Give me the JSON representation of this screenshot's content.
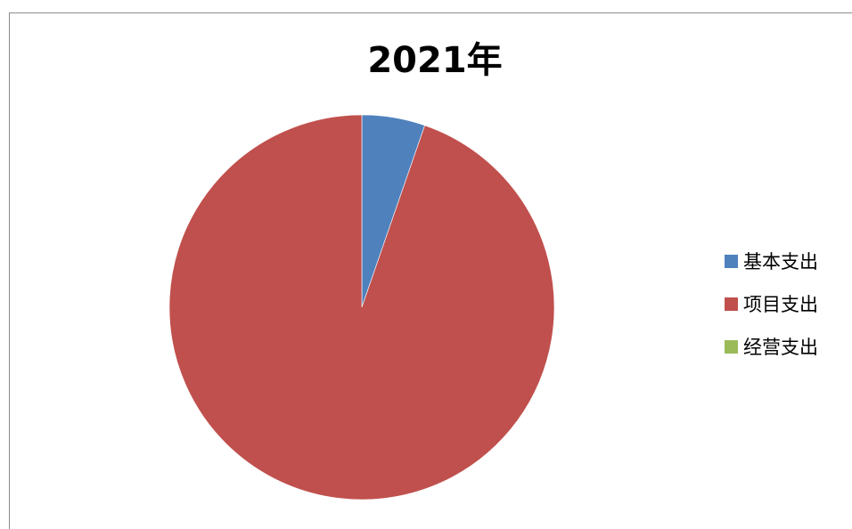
{
  "chart_data": {
    "type": "pie",
    "title": "2021年",
    "categories": [
      "基本支出",
      "项目支出",
      "经营支出"
    ],
    "values": [
      5.3,
      94.7,
      0
    ],
    "colors": [
      "#4f81bd",
      "#c0504d",
      "#9bbb59"
    ],
    "start_angle_deg": 0,
    "direction": "clockwise",
    "legend_position": "right"
  }
}
